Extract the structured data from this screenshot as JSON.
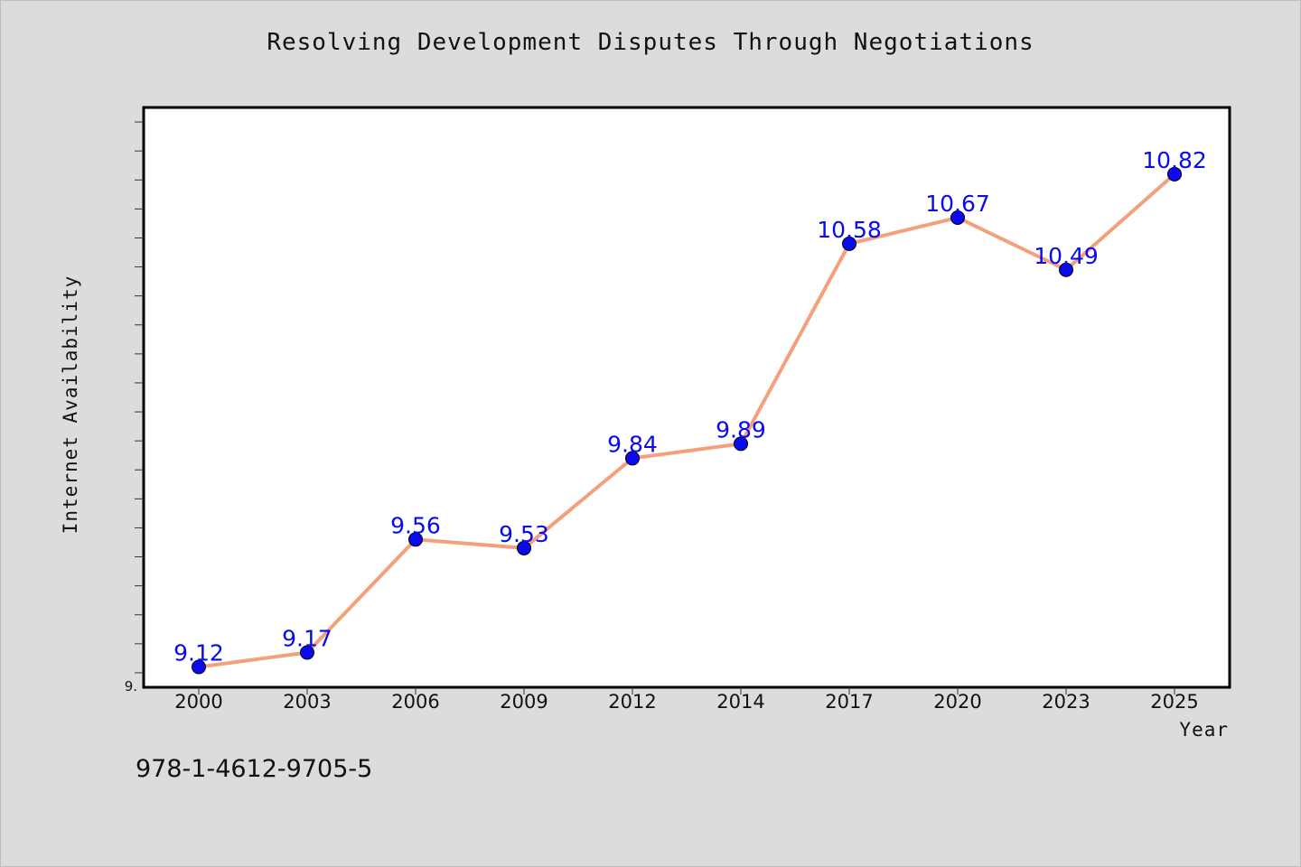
{
  "chart_data": {
    "type": "line",
    "title": "Resolving Development Disputes Through Negotiations",
    "xlabel": "Year",
    "ylabel": "Internet Availability",
    "categories": [
      "2000",
      "2003",
      "2006",
      "2009",
      "2012",
      "2014",
      "2017",
      "2020",
      "2023",
      "2025"
    ],
    "series": [
      {
        "values": [
          9.12,
          9.17,
          9.56,
          9.53,
          9.84,
          9.89,
          10.58,
          10.67,
          10.49,
          10.82
        ],
        "line_color": "#f4a07c",
        "marker_color": "#0a0aee",
        "label_color": "#0a0aee"
      }
    ],
    "ylim": [
      9.05,
      11.05
    ],
    "y_tick_label": "9.",
    "grid": false,
    "legend": "none",
    "data_labels": true
  },
  "footnote": "978-1-4612-9705-5"
}
